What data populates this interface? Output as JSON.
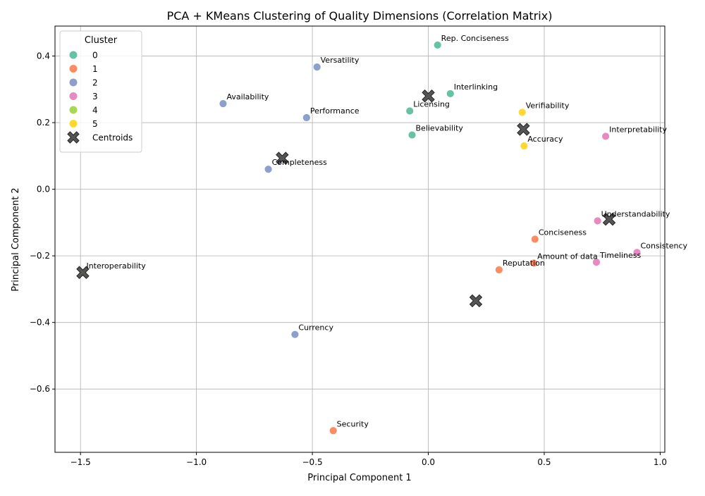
{
  "chart_data": {
    "type": "scatter",
    "title": "PCA + KMeans Clustering of Quality Dimensions (Correlation Matrix)",
    "xlabel": "Principal Component 1",
    "ylabel": "Principal Component 2",
    "xlim": [
      -1.61,
      1.02
    ],
    "ylim": [
      -0.79,
      0.49
    ],
    "xticks": [
      -1.5,
      -1.0,
      -0.5,
      0.0,
      0.5,
      1.0
    ],
    "xtick_labels": [
      "−1.5",
      "−1.0",
      "−0.5",
      "0.0",
      "0.5",
      "1.0"
    ],
    "yticks": [
      -0.6,
      -0.4,
      -0.2,
      0.0,
      0.2,
      0.4
    ],
    "ytick_labels": [
      "−0.6",
      "−0.4",
      "−0.2",
      "0.0",
      "0.2",
      "0.4"
    ],
    "grid": true,
    "legend": {
      "title": "Cluster",
      "placement": "upper-left",
      "entries": [
        {
          "label": "0",
          "color": "#66c2a5"
        },
        {
          "label": "1",
          "color": "#fc8d62"
        },
        {
          "label": "2",
          "color": "#8da0cb"
        },
        {
          "label": "3",
          "color": "#e78ac3"
        },
        {
          "label": "4",
          "color": "#a6d854"
        },
        {
          "label": "5",
          "color": "#ffd92f"
        }
      ],
      "centroid_label": "Centroids"
    },
    "points": [
      {
        "label": "Rep. Conciseness",
        "x": 0.04,
        "y": 0.433,
        "cluster": 0
      },
      {
        "label": "Interlinking",
        "x": 0.095,
        "y": 0.287,
        "cluster": 0
      },
      {
        "label": "Licensing",
        "x": -0.08,
        "y": 0.235,
        "cluster": 0
      },
      {
        "label": "Believability",
        "x": -0.07,
        "y": 0.163,
        "cluster": 0
      },
      {
        "label": "Conciseness",
        "x": 0.46,
        "y": -0.15,
        "cluster": 1
      },
      {
        "label": "Amount of data",
        "x": 0.455,
        "y": -0.222,
        "cluster": 1
      },
      {
        "label": "Reputation",
        "x": 0.305,
        "y": -0.242,
        "cluster": 1
      },
      {
        "label": "Security",
        "x": -0.41,
        "y": -0.725,
        "cluster": 1
      },
      {
        "label": "Versatility",
        "x": -0.48,
        "y": 0.367,
        "cluster": 2
      },
      {
        "label": "Availability",
        "x": -0.885,
        "y": 0.257,
        "cluster": 2
      },
      {
        "label": "Performance",
        "x": -0.525,
        "y": 0.215,
        "cluster": 2
      },
      {
        "label": "Completeness",
        "x": -0.69,
        "y": 0.06,
        "cluster": 2
      },
      {
        "label": "Currency",
        "x": -0.575,
        "y": -0.436,
        "cluster": 2
      },
      {
        "label": "Interpretability",
        "x": 0.765,
        "y": 0.159,
        "cluster": 3
      },
      {
        "label": "Understandability",
        "x": 0.73,
        "y": -0.095,
        "cluster": 3
      },
      {
        "label": "Consistency",
        "x": 0.9,
        "y": -0.19,
        "cluster": 3
      },
      {
        "label": "Timeliness",
        "x": 0.725,
        "y": -0.219,
        "cluster": 3
      },
      {
        "label": "Interoperability",
        "x": -1.49,
        "y": -0.25,
        "cluster": 4
      },
      {
        "label": "Verifiability",
        "x": 0.405,
        "y": 0.231,
        "cluster": 5
      },
      {
        "label": "Accuracy",
        "x": 0.413,
        "y": 0.13,
        "cluster": 5
      }
    ],
    "centroids": [
      {
        "cluster": 0,
        "x": 0.0,
        "y": 0.28
      },
      {
        "cluster": 1,
        "x": 0.205,
        "y": -0.335
      },
      {
        "cluster": 2,
        "x": -0.63,
        "y": 0.093
      },
      {
        "cluster": 3,
        "x": 0.78,
        "y": -0.09
      },
      {
        "cluster": 4,
        "x": -1.49,
        "y": -0.25
      },
      {
        "cluster": 5,
        "x": 0.41,
        "y": 0.18
      }
    ]
  }
}
